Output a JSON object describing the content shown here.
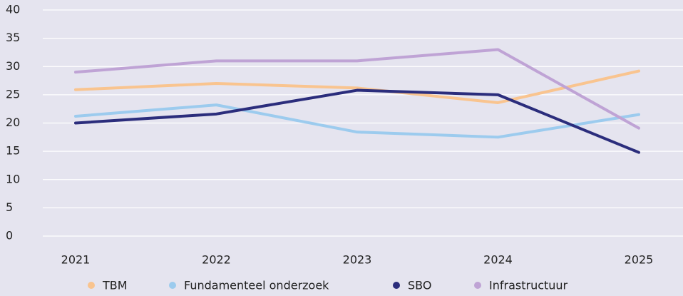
{
  "chart_data": {
    "type": "line",
    "categories": [
      "2021",
      "2022",
      "2023",
      "2024",
      "2025"
    ],
    "series": [
      {
        "name": "TBM",
        "color": "#f9c48f",
        "values": [
          25.9,
          27,
          26.2,
          23.6,
          29.2
        ]
      },
      {
        "name": "Fundamenteel onderzoek",
        "color": "#9ccbee",
        "values": [
          21.2,
          23.2,
          18.4,
          17.5,
          21.5
        ]
      },
      {
        "name": "SBO",
        "color": "#2b2d7c",
        "values": [
          20,
          21.6,
          25.8,
          25,
          14.8
        ]
      },
      {
        "name": "Infrastructuur",
        "color": "#bfa3d5",
        "values": [
          29,
          31,
          31,
          33,
          19.1
        ]
      }
    ],
    "ylim": [
      0,
      40
    ],
    "yticks": [
      0,
      5,
      10,
      15,
      20,
      25,
      30,
      35,
      40
    ],
    "grid": true,
    "legend": "bottom"
  }
}
